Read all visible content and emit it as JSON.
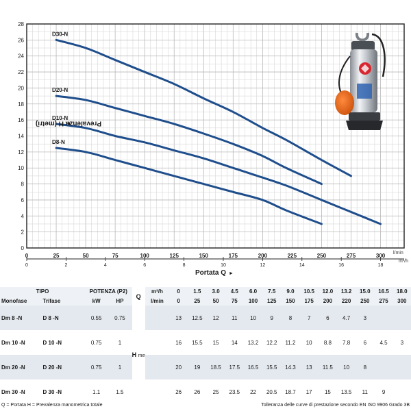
{
  "chart_data": {
    "type": "line",
    "ylabel": "Prevalenza  H  (metri)",
    "xlabel": "Portata  Q",
    "xlabel_arrow": "►",
    "ylabel_arrow": "►",
    "ylim": [
      0,
      28
    ],
    "y_ticks": [
      "0",
      "2",
      "4",
      "6",
      "8",
      "10",
      "12",
      "14",
      "16",
      "18",
      "20",
      "22",
      "24",
      "26",
      "28"
    ],
    "xlim": [
      0,
      320
    ],
    "x_ticks_lmin": [
      "0",
      "25",
      "50",
      "75",
      "100",
      "125",
      "150",
      "175",
      "200",
      "225",
      "250",
      "275",
      "300"
    ],
    "x_ticks_m3h": [
      "0",
      "2",
      "4",
      "6",
      "8",
      "10",
      "12",
      "14",
      "16",
      "18"
    ],
    "unit_lmin": "l/min",
    "unit_m3h": "m³/h",
    "grid": true,
    "series": [
      {
        "name": "D30-N",
        "x": [
          25,
          50,
          75,
          100,
          125,
          150,
          175,
          200,
          220,
          250,
          275
        ],
        "y": [
          26,
          25,
          23.5,
          22,
          20.5,
          18.7,
          17,
          15,
          13.5,
          11,
          9
        ]
      },
      {
        "name": "D20-N",
        "x": [
          25,
          50,
          75,
          100,
          125,
          150,
          175,
          200,
          220,
          250
        ],
        "y": [
          19,
          18.5,
          17.5,
          16.5,
          15.5,
          14.3,
          13,
          11.5,
          10,
          8
        ]
      },
      {
        "name": "D10-N",
        "x": [
          25,
          50,
          75,
          100,
          125,
          150,
          175,
          200,
          220,
          250,
          275,
          300
        ],
        "y": [
          15.5,
          15,
          14,
          13.2,
          12.2,
          11.2,
          10,
          8.8,
          7.8,
          6,
          4.5,
          3
        ]
      },
      {
        "name": "D8-N",
        "x": [
          25,
          50,
          75,
          100,
          125,
          150,
          175,
          200,
          220,
          250
        ],
        "y": [
          12.5,
          12,
          11,
          10,
          9,
          8,
          7,
          6,
          4.7,
          3
        ]
      }
    ]
  },
  "colors": {
    "curve": "#1f4e8c",
    "grid": "#cfcfcf",
    "table_header": "#eef2f6",
    "table_shade": "#e4e9ef"
  },
  "table": {
    "tipo_label": "TIPO",
    "monofase_label": "Monofase",
    "trifase_label": "Trifase",
    "potenza_label": "POTENZA (P2)",
    "kw_label": "kW",
    "hp_label": "HP",
    "q_label": "Q",
    "h_label": "H",
    "h_unit": "metri",
    "unit_m3h": "m³/h",
    "unit_lmin": "l/min",
    "m3h_values": [
      "0",
      "1.5",
      "3.0",
      "4.5",
      "6.0",
      "7.5",
      "9.0",
      "10.5",
      "12.0",
      "13.2",
      "15.0",
      "16.5",
      "18.0"
    ],
    "lmin_values": [
      "0",
      "25",
      "50",
      "75",
      "100",
      "125",
      "150",
      "175",
      "200",
      "220",
      "250",
      "275",
      "300"
    ],
    "rows": [
      {
        "mono": "Dm 8  -N",
        "tri": "D 8   -N",
        "kw": "0.55",
        "hp": "0.75",
        "h": [
          "13",
          "12.5",
          "12",
          "11",
          "10",
          "9",
          "8",
          "7",
          "6",
          "4.7",
          "3",
          "",
          ""
        ]
      },
      {
        "mono": "Dm 10 -N",
        "tri": "D 10 -N",
        "kw": "0.75",
        "hp": "1",
        "h": [
          "16",
          "15.5",
          "15",
          "14",
          "13.2",
          "12.2",
          "11.2",
          "10",
          "8.8",
          "7.8",
          "6",
          "4.5",
          "3"
        ]
      },
      {
        "mono": "Dm 20 -N",
        "tri": "D 20 -N",
        "kw": "0.75",
        "hp": "1",
        "h": [
          "20",
          "19",
          "18.5",
          "17.5",
          "16.5",
          "15.5",
          "14.3",
          "13",
          "11.5",
          "10",
          "8",
          "",
          ""
        ]
      },
      {
        "mono": "Dm 30 -N",
        "tri": "D 30 -N",
        "kw": "1.1",
        "hp": "1.5",
        "h": [
          "26",
          "26",
          "25",
          "23.5",
          "22",
          "20.5",
          "18.7",
          "17",
          "15",
          "13.5",
          "11",
          "9",
          ""
        ]
      }
    ]
  },
  "footer": {
    "left": "Q = Portata   H = Prevalenza manometrica totale",
    "right": "Tolleranza delle curve di prestazione secondo EN ISO 9906 Grado 3B"
  },
  "photo": {
    "icon": "submersible-pump-photo"
  }
}
